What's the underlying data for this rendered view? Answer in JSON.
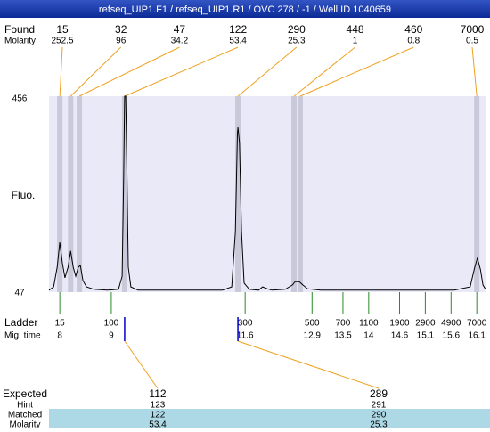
{
  "chart_data": {
    "type": "electropherogram",
    "title": "refseq_UIP1.F1 / refseq_UIP1.R1 / OVC 278 / -1 / Well ID 1040659",
    "ylabel": "Fluo.",
    "color": "#000000",
    "xlim": [
      7.79,
      16.27
    ],
    "ylim": [
      47,
      456
    ],
    "yticks": [
      456,
      47
    ],
    "x": [
      7.79,
      7.88,
      7.95,
      8.0,
      8.05,
      8.1,
      8.16,
      8.21,
      8.26,
      8.31,
      8.36,
      8.4,
      8.45,
      8.52,
      8.66,
      8.92,
      9.14,
      9.21,
      9.24,
      9.26,
      9.28,
      9.3,
      9.33,
      9.38,
      9.52,
      10.3,
      11.16,
      11.34,
      11.41,
      11.45,
      11.46,
      11.49,
      11.53,
      11.58,
      11.68,
      11.86,
      11.94,
      12.03,
      12.12,
      12.38,
      12.52,
      12.57,
      12.65,
      12.72,
      12.81,
      13.07,
      14.63,
      15.66,
      15.97,
      16.06,
      16.11,
      16.17,
      16.22,
      16.27
    ],
    "values": [
      51,
      58,
      99,
      151,
      108,
      77,
      99,
      133,
      99,
      80,
      99,
      103,
      71,
      58,
      53,
      51,
      53,
      80,
      285,
      456,
      456,
      322,
      99,
      58,
      51,
      51,
      51,
      58,
      173,
      378,
      391,
      359,
      173,
      66,
      53,
      51,
      58,
      54,
      51,
      53,
      62,
      69,
      69,
      62,
      54,
      51,
      51,
      51,
      58,
      99,
      118,
      95,
      62,
      53
    ],
    "found": {
      "label": "Found",
      "molarity_label": "Molarity",
      "sizes": [
        15,
        32,
        47,
        122,
        290,
        448,
        460,
        7000
      ],
      "molarity": [
        252.5,
        96,
        34.2,
        53.4,
        25.3,
        1,
        0.8,
        0.5
      ],
      "x": [
        8.0,
        8.21,
        8.38,
        9.26,
        11.46,
        12.55,
        12.67,
        16.1
      ]
    },
    "ladder": {
      "label": "Ladder",
      "time_label": "Mig. time",
      "sizes": [
        15,
        100,
        300,
        500,
        700,
        1100,
        1900,
        2900,
        4900,
        7000
      ],
      "x": [
        8,
        9,
        11.6,
        12.9,
        13.5,
        14,
        14.6,
        15.1,
        15.6,
        16.1
      ]
    },
    "expected": {
      "label": "Expected",
      "hint_label": "Hint",
      "matched_label": "Matched",
      "molarity_label": "Molarity",
      "values": [
        112,
        289
      ],
      "hint": [
        123,
        291
      ],
      "matched": [
        122,
        290
      ],
      "molarity": [
        53.4,
        25.3
      ]
    }
  }
}
